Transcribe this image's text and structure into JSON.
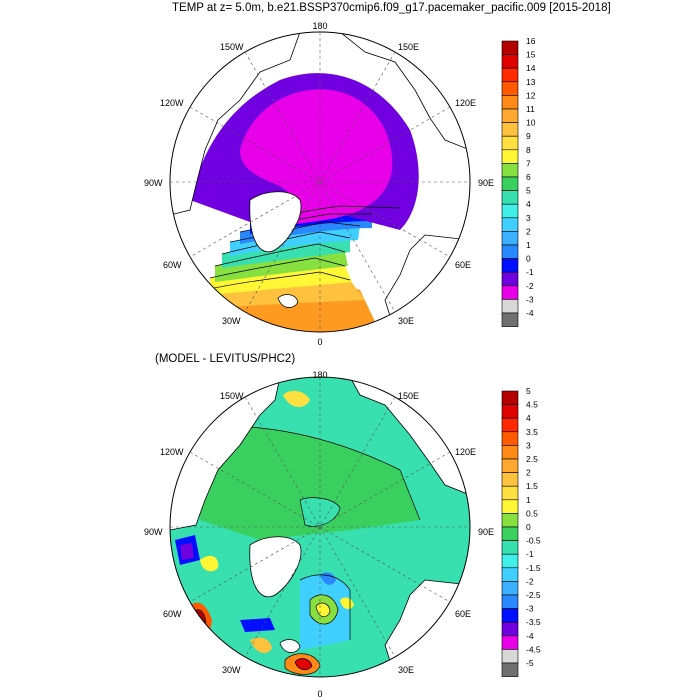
{
  "title": "TEMP at z=   5.0m, b.e21.BSSP370cmip6.f09_g17.pacemaker_pacific.009 [2015-2018]",
  "subtitle": "(MODEL - LEVITUS/PHC2)",
  "longitude_labels": [
    "180",
    "150E",
    "120E",
    "90E",
    "60E",
    "30E",
    "0",
    "30W",
    "60W",
    "90W",
    "120W",
    "150W"
  ],
  "panels": [
    {
      "name": "temp",
      "colorbar": {
        "labels": [
          "16",
          "15",
          "14",
          "13",
          "12",
          "11",
          "10",
          "9",
          "8",
          "7",
          "6",
          "5",
          "4",
          "3",
          "2",
          "1",
          "0",
          "-1",
          "-2",
          "-3",
          "-4"
        ],
        "colors": [
          "#b50000",
          "#e00000",
          "#ff2a00",
          "#ff5a00",
          "#ff8a18",
          "#ffa830",
          "#ffc23e",
          "#ffe040",
          "#fff636",
          "#88e040",
          "#3ad060",
          "#38e0b0",
          "#40f0e8",
          "#40d0ff",
          "#3cb0ff",
          "#2a88ff",
          "#0010ff",
          "#7000e0",
          "#e800e8",
          "#d8d8d8",
          "#707070"
        ]
      }
    },
    {
      "name": "diff",
      "colorbar": {
        "labels": [
          "5",
          "4.5",
          "4",
          "3.5",
          "3",
          "2.5",
          "2",
          "1.5",
          "1",
          "0.5",
          "0",
          "-0.5",
          "-1",
          "-1.5",
          "-2",
          "-2.5",
          "-3",
          "-3.5",
          "-4",
          "-4.5",
          "-5"
        ],
        "colors": [
          "#b50000",
          "#e00000",
          "#ff2a00",
          "#ff5a00",
          "#ff8a18",
          "#ffa830",
          "#ffc23e",
          "#ffe040",
          "#fff636",
          "#88e040",
          "#3ad060",
          "#38e0b0",
          "#40f0e8",
          "#40d0ff",
          "#3cb0ff",
          "#2a88ff",
          "#0010ff",
          "#7000e0",
          "#e800e8",
          "#d8d8d8",
          "#707070"
        ]
      }
    }
  ]
}
